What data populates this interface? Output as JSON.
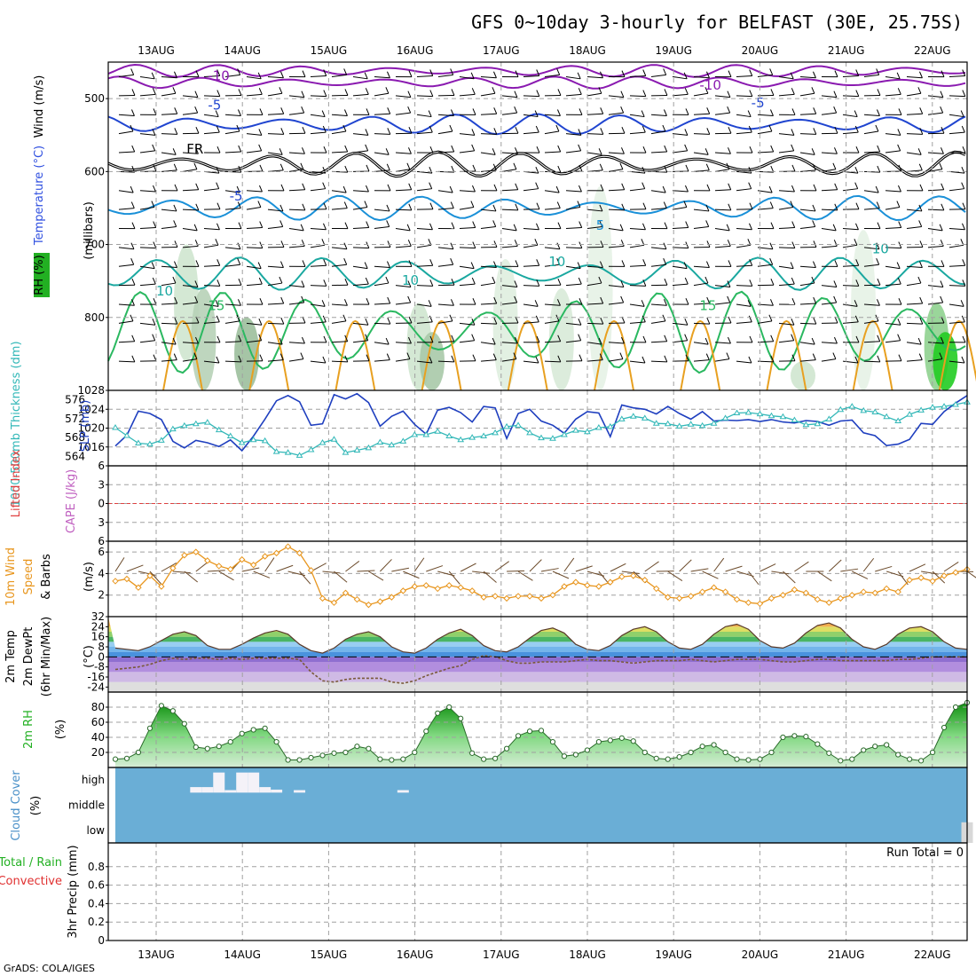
{
  "title": "GFS 0~10day 3-hourly for BELFAST (30E, 25.75S)",
  "credit": "GrADS: COLA/IGES",
  "run_total": "Run Total = 0",
  "date_labels": [
    "13AUG",
    "14AUG",
    "15AUG",
    "16AUG",
    "17AUG",
    "18AUG",
    "19AUG",
    "20AUG",
    "21AUG",
    "22AUG"
  ],
  "panel_labels": {
    "upper_wind": "Wind (m/s)",
    "upper_temp": "Temperature (°C)",
    "upper_rh": "RH (%)",
    "upper_units": "(millibars)",
    "slp": "SLP (mb)",
    "thickness": "1000-500mb Thickness (dm)",
    "lifted": "Lifted Index",
    "cape": "CAPE (J/kg)",
    "wind10_a": "10m Wind",
    "wind10_b": "Speed",
    "wind10_c": "& Barbs",
    "wind10_units": "(m/s)",
    "t2m_a": "2m Temp",
    "t2m_b": "2m DewPt",
    "t2m_c": "(6hr Min/Max)",
    "t2m_units": "(°C)",
    "rh2m": "2m RH",
    "rh2m_units": "(%)",
    "cloud": "Cloud Cover",
    "cloud_units": "(%)",
    "precip_a": "Total / Rain",
    "precip_b": "Convective",
    "precip_c": "3hr Precip (mm)"
  },
  "colors": {
    "slp": "#1f3fbf",
    "thickness": "#33b8b8",
    "wind_speed": "#e8961e",
    "dewpoint": "#7a5a3a",
    "rh_green": "#22b022",
    "cloud_blue": "#6aaed6",
    "contour_neg10": "#8a1ab0",
    "contour_neg5": "#2045d0",
    "contour_5": "#1a90d8",
    "contour_10": "#1aa8a0",
    "contour_15": "#2ab860",
    "contour_20": "#e8a020",
    "freezing": "#000000",
    "lifted_zero": "#e04040"
  },
  "chart_data": [
    {
      "type": "heatmap",
      "panel": "upper_air",
      "ylabel": "(millibars)",
      "yticks": [
        500,
        600,
        700,
        800
      ],
      "ylim": [
        450,
        900
      ],
      "isotherm_labels": [
        {
          "text": "-10",
          "level": 475,
          "day": 0.6
        },
        {
          "text": "-10",
          "level": 488,
          "day": 6.3
        },
        {
          "text": "-5",
          "level": 515,
          "day": 0.6
        },
        {
          "text": "-5",
          "level": 512,
          "day": 6.9
        },
        {
          "text": "FR",
          "level": 575,
          "day": 0.25
        },
        {
          "text": "-5",
          "level": 640,
          "day": 0.85
        },
        {
          "text": "5",
          "level": 680,
          "day": 5.1
        },
        {
          "text": "10",
          "level": 730,
          "day": 4.55
        },
        {
          "text": "10",
          "level": 712,
          "day": 8.3
        },
        {
          "text": "10",
          "level": 770,
          "day": 0.0
        },
        {
          "text": "10",
          "level": 755,
          "day": 2.85
        },
        {
          "text": "15",
          "level": 790,
          "day": 0.6
        },
        {
          "text": "15",
          "level": 790,
          "day": 6.3
        }
      ]
    },
    {
      "type": "line",
      "panel": "slp_thickness",
      "ylabel": "SLP (mb)",
      "ylim_slp": [
        1012,
        1028
      ],
      "yticks_slp": [
        1016,
        1020,
        1024,
        1028
      ],
      "ylim_thk": [
        562,
        578
      ],
      "yticks_thk": [
        564,
        568,
        572,
        576
      ],
      "series": [
        {
          "name": "SLP (mb)",
          "values": [
            1016.2,
            1018.5,
            1023.6,
            1023.1,
            1021.8,
            1017.2,
            1015.8,
            1017.4,
            1016.9,
            1016.1,
            1017.5,
            1015.2,
            1018.3,
            1021.9,
            1025.8,
            1026.9,
            1025.6,
            1020.6,
            1020.9,
            1027.1,
            1026.2,
            1027.3,
            1025.4,
            1020.4,
            1022.5,
            1023.6,
            1020.8,
            1018.7,
            1023.8,
            1024.4,
            1023.3,
            1021.3,
            1024.6,
            1024.3,
            1017.8,
            1023.1,
            1024.0,
            1021.5,
            1020.6,
            1018.9,
            1021.9,
            1023.5,
            1023.2,
            1018.2,
            1024.9,
            1024.3,
            1024.0,
            1023.0,
            1024.6,
            1023.1,
            1021.9,
            1023.5,
            1021.5,
            1021.7,
            1021.6,
            1021.8,
            1021.4,
            1021.8,
            1021.3,
            1021.1,
            1021.6,
            1021.4,
            1020.6,
            1021.5,
            1021.7,
            1019.0,
            1018.4,
            1016.3,
            1016.6,
            1017.6,
            1021.0,
            1020.8,
            1023.5,
            1025.3,
            1026.9
          ]
        },
        {
          "name": "1000-500mb Thickness (dm)",
          "values": [
            570.1,
            568.4,
            566.8,
            566.6,
            567.4,
            569.8,
            570.5,
            570.9,
            571.2,
            569.6,
            568.3,
            566.9,
            567.5,
            567.3,
            565.0,
            564.8,
            564.2,
            565.4,
            566.9,
            567.6,
            564.8,
            565.3,
            565.8,
            567.0,
            566.4,
            567.2,
            568.6,
            568.6,
            569.3,
            568.3,
            567.5,
            568.0,
            568.3,
            569.0,
            570.3,
            570.6,
            569.0,
            567.9,
            567.8,
            568.6,
            569.5,
            569.2,
            570.1,
            570.3,
            571.9,
            572.5,
            572.1,
            571.0,
            570.9,
            570.4,
            570.8,
            570.5,
            571.0,
            572.1,
            573.2,
            573.3,
            573.0,
            572.6,
            572.4,
            571.7,
            570.7,
            570.9,
            571.9,
            573.9,
            574.6,
            573.7,
            573.4,
            572.4,
            571.5,
            572.9,
            573.8,
            574.4,
            574.6,
            575.0,
            575.5
          ]
        }
      ]
    },
    {
      "type": "line",
      "panel": "lifted_cape",
      "ylabel": "Lifted Index",
      "ylim": [
        6,
        -6
      ],
      "yticks": [
        -6,
        -3,
        0,
        3,
        6
      ],
      "series": []
    },
    {
      "type": "line",
      "panel": "wind10m",
      "ylabel": "(m/s)",
      "ylim": [
        0,
        7
      ],
      "yticks": [
        2,
        4,
        6
      ],
      "series": [
        {
          "name": "10m Wind Speed",
          "values": [
            3.3,
            3.5,
            2.7,
            3.8,
            2.8,
            4.5,
            5.7,
            6.0,
            5.2,
            4.7,
            4.4,
            5.3,
            4.8,
            5.6,
            5.9,
            6.5,
            5.9,
            4.3,
            1.7,
            1.3,
            2.2,
            1.6,
            1.1,
            1.4,
            1.8,
            2.4,
            2.8,
            2.9,
            2.6,
            2.9,
            2.7,
            2.4,
            1.8,
            1.9,
            1.7,
            1.9,
            1.9,
            1.7,
            2.0,
            2.8,
            3.2,
            2.9,
            2.8,
            3.2,
            3.7,
            3.8,
            3.4,
            2.6,
            1.8,
            1.7,
            1.9,
            2.3,
            2.7,
            2.3,
            1.6,
            1.3,
            1.2,
            1.7,
            2.0,
            2.5,
            2.2,
            1.6,
            1.3,
            1.7,
            2.0,
            2.3,
            2.2,
            2.6,
            2.3,
            3.4,
            3.6,
            3.3,
            3.8,
            4.1,
            4.4
          ]
        }
      ]
    },
    {
      "type": "area",
      "panel": "temp2m",
      "ylabel": "(°C)",
      "ylim": [
        -28,
        32
      ],
      "yticks": [
        -24,
        -16,
        -8,
        0,
        8,
        16,
        24,
        32
      ],
      "series": [
        {
          "name": "2m Temp",
          "values": [
            7,
            6,
            5,
            8,
            13,
            18,
            20,
            17,
            9,
            6,
            6,
            10,
            15,
            19,
            21,
            18,
            10,
            5,
            3,
            7,
            14,
            18,
            20,
            16,
            8,
            4,
            3,
            7,
            14,
            19,
            22,
            17,
            9,
            5,
            4,
            8,
            15,
            21,
            23,
            19,
            10,
            6,
            5,
            9,
            17,
            22,
            24,
            20,
            12,
            7,
            6,
            10,
            18,
            24,
            26,
            22,
            13,
            8,
            7,
            11,
            19,
            25,
            27,
            23,
            14,
            8,
            6,
            10,
            18,
            23,
            24,
            20,
            12,
            7,
            6
          ]
        },
        {
          "name": "2m DewPt",
          "values": [
            -10,
            -9,
            -8,
            -6,
            -3,
            -1,
            -2,
            -1,
            -1,
            -2,
            -1,
            -2,
            -1,
            -1,
            -1,
            -1,
            -2,
            -12,
            -19,
            -20,
            -18,
            -17,
            -17,
            -17,
            -20,
            -21,
            -19,
            -15,
            -12,
            -9,
            -7,
            -2,
            1,
            0,
            -3,
            -5,
            -5,
            -4,
            -4,
            -4,
            -3,
            -2,
            -3,
            -3,
            -4,
            -5,
            -4,
            -3,
            -3,
            -3,
            -2,
            -3,
            -4,
            -3,
            -2,
            -2,
            -2,
            -3,
            -4,
            -4,
            -3,
            -2,
            -2,
            -3,
            -3,
            -3,
            -3,
            -3,
            -2,
            -2,
            -1,
            0,
            0,
            0,
            0
          ]
        }
      ]
    },
    {
      "type": "area",
      "panel": "rh2m",
      "ylabel": "(%)",
      "ylim": [
        0,
        100
      ],
      "yticks": [
        20,
        40,
        60,
        80
      ],
      "series": [
        {
          "name": "2m RH",
          "values": [
            11,
            12,
            20,
            52,
            82,
            75,
            58,
            27,
            25,
            28,
            34,
            45,
            50,
            52,
            34,
            10,
            10,
            13,
            16,
            19,
            20,
            28,
            25,
            11,
            10,
            11,
            20,
            48,
            72,
            80,
            65,
            19,
            11,
            12,
            25,
            42,
            48,
            49,
            34,
            15,
            17,
            23,
            34,
            36,
            39,
            35,
            20,
            12,
            11,
            14,
            20,
            28,
            30,
            20,
            11,
            10,
            11,
            20,
            40,
            42,
            41,
            31,
            19,
            9,
            11,
            23,
            28,
            30,
            17,
            11,
            9,
            20,
            53,
            80,
            86
          ]
        }
      ]
    },
    {
      "type": "bar",
      "panel": "cloud",
      "ylabel": "(%)",
      "yticks": [
        "low",
        "middle",
        "high"
      ],
      "series": [
        {
          "name": "high",
          "values": [
            0,
            0,
            0,
            0,
            0,
            0,
            0,
            22,
            22,
            80,
            10,
            80,
            80,
            22,
            12,
            0,
            10,
            0,
            0,
            0,
            0,
            0,
            0,
            0,
            0,
            10,
            0,
            0,
            0,
            0,
            0,
            0,
            0,
            0,
            0,
            0,
            0,
            0,
            0,
            0,
            0,
            0,
            0,
            0,
            0,
            0,
            0,
            0,
            0,
            0,
            0,
            0,
            0,
            0,
            0,
            0,
            0,
            0,
            0,
            0,
            0,
            0,
            0,
            0,
            0,
            0,
            0,
            0,
            0,
            0,
            0,
            0,
            0,
            0,
            0
          ]
        },
        {
          "name": "low",
          "values": [
            0,
            0,
            0,
            0,
            0,
            0,
            0,
            0,
            0,
            0,
            0,
            0,
            0,
            0,
            0,
            0,
            0,
            0,
            0,
            0,
            0,
            0,
            0,
            0,
            0,
            0,
            0,
            0,
            0,
            0,
            0,
            0,
            0,
            0,
            0,
            0,
            0,
            0,
            0,
            0,
            0,
            0,
            0,
            0,
            0,
            0,
            0,
            0,
            0,
            0,
            0,
            0,
            0,
            0,
            0,
            0,
            0,
            0,
            0,
            0,
            0,
            0,
            0,
            0,
            0,
            0,
            0,
            0,
            0,
            0,
            0,
            0,
            0,
            0,
            82
          ]
        }
      ]
    },
    {
      "type": "bar",
      "panel": "precip",
      "ylabel": "3hr Precip (mm)",
      "ylim": [
        0,
        1.0
      ],
      "yticks": [
        0,
        0.2,
        0.4,
        0.6,
        0.8
      ],
      "series": []
    }
  ]
}
